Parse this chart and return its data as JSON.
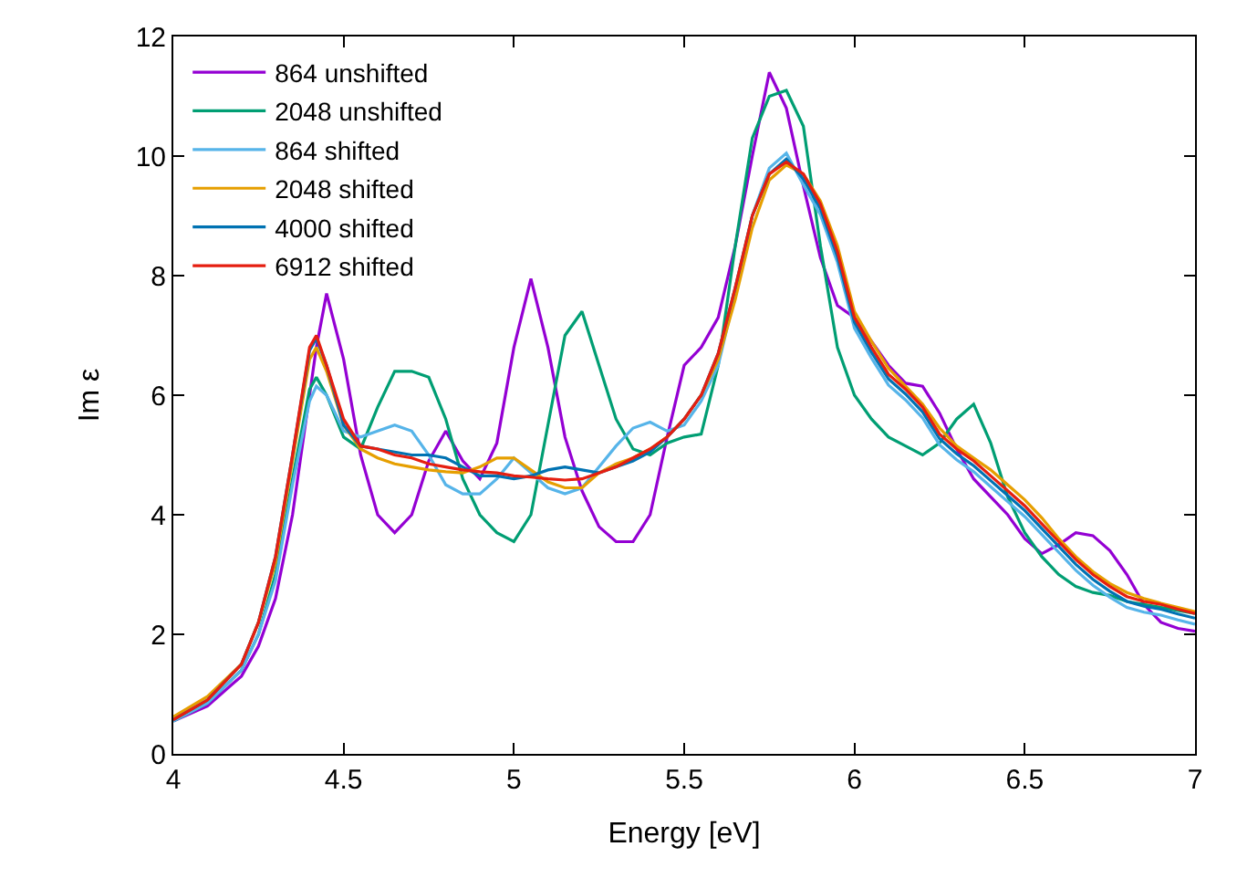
{
  "chart_data": {
    "type": "line",
    "xlabel": "Energy [eV]",
    "ylabel": "Im ε",
    "x": [
      4.0,
      4.1,
      4.2,
      4.25,
      4.3,
      4.35,
      4.4,
      4.42,
      4.45,
      4.5,
      4.55,
      4.6,
      4.65,
      4.7,
      4.75,
      4.8,
      4.85,
      4.9,
      4.95,
      5.0,
      5.05,
      5.1,
      5.15,
      5.2,
      5.25,
      5.3,
      5.35,
      5.4,
      5.45,
      5.5,
      5.55,
      5.6,
      5.65,
      5.7,
      5.75,
      5.8,
      5.85,
      5.9,
      5.95,
      6.0,
      6.05,
      6.1,
      6.15,
      6.2,
      6.25,
      6.3,
      6.35,
      6.4,
      6.45,
      6.5,
      6.55,
      6.6,
      6.65,
      6.7,
      6.75,
      6.8,
      6.85,
      6.9,
      6.95,
      7.0
    ],
    "series": [
      {
        "name": "864 unshifted",
        "color": "#9400d3",
        "values": [
          0.55,
          0.8,
          1.3,
          1.8,
          2.6,
          4.0,
          6.0,
          6.8,
          7.7,
          6.6,
          5.0,
          4.0,
          3.7,
          4.0,
          4.9,
          5.4,
          4.9,
          4.6,
          5.2,
          6.8,
          7.95,
          6.8,
          5.3,
          4.4,
          3.8,
          3.55,
          3.55,
          4.0,
          5.3,
          6.5,
          6.8,
          7.3,
          8.5,
          10.0,
          11.4,
          10.8,
          9.5,
          8.3,
          7.5,
          7.3,
          6.9,
          6.5,
          6.2,
          6.15,
          5.7,
          5.1,
          4.6,
          4.3,
          4.0,
          3.6,
          3.35,
          3.5,
          3.7,
          3.65,
          3.4,
          3.0,
          2.5,
          2.2,
          2.1,
          2.05
        ]
      },
      {
        "name": "2048 unshifted",
        "color": "#009e73",
        "values": [
          0.55,
          0.85,
          1.4,
          2.0,
          3.0,
          4.6,
          6.1,
          6.3,
          6.0,
          5.3,
          5.1,
          5.8,
          6.4,
          6.4,
          6.3,
          5.6,
          4.6,
          4.0,
          3.7,
          3.55,
          4.0,
          5.5,
          7.0,
          7.4,
          6.5,
          5.6,
          5.1,
          5.0,
          5.2,
          5.3,
          5.35,
          6.5,
          8.5,
          10.3,
          11.0,
          11.1,
          10.5,
          8.5,
          6.8,
          6.0,
          5.6,
          5.3,
          5.15,
          5.0,
          5.2,
          5.6,
          5.85,
          5.2,
          4.3,
          3.7,
          3.3,
          3.0,
          2.8,
          2.7,
          2.65,
          2.55,
          2.5,
          2.45,
          2.4,
          2.35
        ]
      },
      {
        "name": "864 shifted",
        "color": "#56b4e9",
        "values": [
          0.55,
          0.85,
          1.4,
          2.0,
          2.9,
          4.5,
          5.9,
          6.15,
          6.0,
          5.4,
          5.3,
          5.4,
          5.5,
          5.4,
          5.0,
          4.5,
          4.35,
          4.35,
          4.6,
          4.95,
          4.7,
          4.45,
          4.35,
          4.45,
          4.8,
          5.15,
          5.45,
          5.55,
          5.4,
          5.5,
          5.9,
          6.5,
          7.7,
          9.0,
          9.8,
          10.05,
          9.52,
          9.02,
          8.22,
          7.12,
          6.62,
          6.17,
          5.92,
          5.62,
          5.17,
          4.92,
          4.72,
          4.47,
          4.22,
          3.97,
          3.67,
          3.37,
          3.07,
          2.82,
          2.62,
          2.45,
          2.37,
          2.32,
          2.24,
          2.17
        ]
      },
      {
        "name": "2048 shifted",
        "color": "#e69f00",
        "values": [
          0.62,
          0.96,
          1.5,
          2.2,
          3.2,
          4.9,
          6.6,
          6.8,
          6.4,
          5.5,
          5.1,
          4.95,
          4.85,
          4.8,
          4.75,
          4.72,
          4.7,
          4.8,
          4.95,
          4.95,
          4.75,
          4.55,
          4.45,
          4.45,
          4.7,
          4.85,
          4.95,
          5.1,
          5.3,
          5.6,
          6.0,
          6.6,
          7.6,
          8.8,
          9.6,
          9.85,
          9.7,
          9.25,
          8.5,
          7.4,
          6.9,
          6.45,
          6.15,
          5.85,
          5.45,
          5.15,
          4.95,
          4.75,
          4.5,
          4.25,
          3.95,
          3.6,
          3.3,
          3.05,
          2.85,
          2.7,
          2.6,
          2.52,
          2.45,
          2.38
        ]
      },
      {
        "name": "4000 shifted",
        "color": "#0072b2",
        "values": [
          0.57,
          0.9,
          1.5,
          2.2,
          3.3,
          5.0,
          6.75,
          6.95,
          6.5,
          5.5,
          5.15,
          5.1,
          5.05,
          5.0,
          5.0,
          4.95,
          4.8,
          4.65,
          4.65,
          4.6,
          4.65,
          4.75,
          4.8,
          4.75,
          4.7,
          4.8,
          4.9,
          5.05,
          5.3,
          5.6,
          6.0,
          6.7,
          7.8,
          9.0,
          9.7,
          9.95,
          9.62,
          9.12,
          8.32,
          7.22,
          6.72,
          6.27,
          6.02,
          5.72,
          5.27,
          5.02,
          4.82,
          4.57,
          4.32,
          4.07,
          3.77,
          3.47,
          3.17,
          2.92,
          2.72,
          2.55,
          2.47,
          2.42,
          2.34,
          2.27
        ]
      },
      {
        "name": "6912 shifted",
        "color": "#e51e10",
        "values": [
          0.57,
          0.9,
          1.5,
          2.2,
          3.3,
          5.0,
          6.8,
          7.0,
          6.5,
          5.6,
          5.15,
          5.1,
          5.0,
          4.95,
          4.85,
          4.8,
          4.75,
          4.72,
          4.7,
          4.65,
          4.63,
          4.6,
          4.58,
          4.6,
          4.7,
          4.8,
          4.95,
          5.1,
          5.3,
          5.6,
          6.0,
          6.7,
          7.8,
          9.0,
          9.7,
          9.9,
          9.7,
          9.2,
          8.4,
          7.3,
          6.8,
          6.35,
          6.1,
          5.8,
          5.35,
          5.1,
          4.9,
          4.65,
          4.4,
          4.15,
          3.85,
          3.55,
          3.25,
          3.0,
          2.8,
          2.63,
          2.55,
          2.5,
          2.42,
          2.35
        ]
      }
    ],
    "xlim": [
      4,
      7
    ],
    "ylim": [
      0,
      12
    ],
    "xticks": [
      4,
      4.5,
      5,
      5.5,
      6,
      6.5,
      7
    ],
    "yticks": [
      0,
      2,
      4,
      6,
      8,
      10,
      12
    ],
    "grid": false,
    "legend": "top left",
    "marker": "none",
    "line_style": "solid"
  }
}
